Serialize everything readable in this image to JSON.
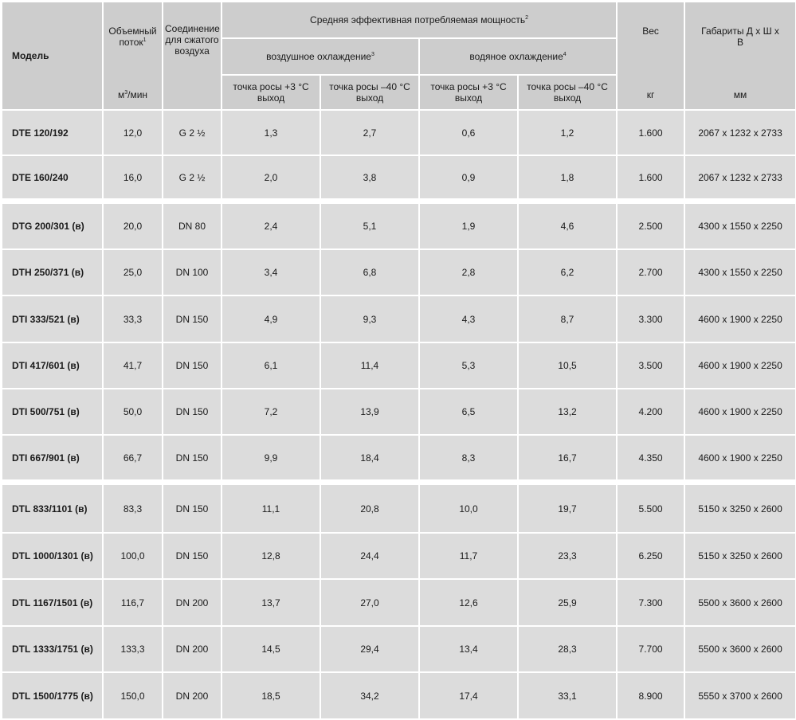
{
  "header": {
    "model": "Модель",
    "flow_label": "Объемный поток",
    "flow_sup": "1",
    "flow_unit_base": "м",
    "flow_unit_sup": "3",
    "flow_unit_rest": "/мин",
    "conn_label": "Соединение для сжатого воздуха",
    "power_label": "Средняя эффективная потребляемая мощность",
    "power_sup": "2",
    "air_cooling": "воздушное охлаждение",
    "air_sup": "3",
    "water_cooling": "водяное охлаждение",
    "water_sup": "4",
    "dew_plus3_line1": "точка росы +3 °C",
    "dew_plus3_line2": "выход",
    "dew_minus40_line1": "точка росы –40 °C",
    "dew_minus40_line2": "выход",
    "weight_label": "Вес",
    "weight_unit": "кг",
    "dims_label": "Габариты Д х Ш х В",
    "dims_unit": "мм"
  },
  "rows": [
    {
      "model": "DTE 120/192",
      "flow": "12,0",
      "conn": "G 2 ½",
      "air3": "1,3",
      "air40": "2,7",
      "water3": "0,6",
      "water40": "1,2",
      "weight": "1.600",
      "dims": "2067 x 1232 x 2733"
    },
    {
      "model": "DTE 160/240",
      "flow": "16,0",
      "conn": "G 2 ½",
      "air3": "2,0",
      "air40": "3,8",
      "water3": "0,9",
      "water40": "1,8",
      "weight": "1.600",
      "dims": "2067 x 1232 x 2733"
    },
    {
      "model": "DTG 200/301 (в)",
      "flow": "20,0",
      "conn": "DN 80",
      "air3": "2,4",
      "air40": "5,1",
      "water3": "1,9",
      "water40": "4,6",
      "weight": "2.500",
      "dims": "4300 x 1550 x 2250"
    },
    {
      "model": "DTH 250/371 (в)",
      "flow": "25,0",
      "conn": "DN 100",
      "air3": "3,4",
      "air40": "6,8",
      "water3": "2,8",
      "water40": "6,2",
      "weight": "2.700",
      "dims": "4300 x 1550 x 2250"
    },
    {
      "model": "DTI 333/521 (в)",
      "flow": "33,3",
      "conn": "DN 150",
      "air3": "4,9",
      "air40": "9,3",
      "water3": "4,3",
      "water40": "8,7",
      "weight": "3.300",
      "dims": "4600 x 1900 x 2250"
    },
    {
      "model": "DTI 417/601 (в)",
      "flow": "41,7",
      "conn": "DN 150",
      "air3": "6,1",
      "air40": "11,4",
      "water3": "5,3",
      "water40": "10,5",
      "weight": "3.500",
      "dims": "4600 x 1900 x 2250"
    },
    {
      "model": "DTI 500/751 (в)",
      "flow": "50,0",
      "conn": "DN 150",
      "air3": "7,2",
      "air40": "13,9",
      "water3": "6,5",
      "water40": "13,2",
      "weight": "4.200",
      "dims": "4600 x 1900 x 2250"
    },
    {
      "model": "DTI 667/901 (в)",
      "flow": "66,7",
      "conn": "DN 150",
      "air3": "9,9",
      "air40": "18,4",
      "water3": "8,3",
      "water40": "16,7",
      "weight": "4.350",
      "dims": "4600 x 1900 x 2250"
    },
    {
      "model": "DTL 833/1101 (в)",
      "flow": "83,3",
      "conn": "DN 150",
      "air3": "11,1",
      "air40": "20,8",
      "water3": "10,0",
      "water40": "19,7",
      "weight": "5.500",
      "dims": "5150 x 3250 x 2600"
    },
    {
      "model": "DTL 1000/1301 (в)",
      "flow": "100,0",
      "conn": "DN 150",
      "air3": "12,8",
      "air40": "24,4",
      "water3": "11,7",
      "water40": "23,3",
      "weight": "6.250",
      "dims": "5150 x 3250 x 2600"
    },
    {
      "model": "DTL 1167/1501 (в)",
      "flow": "116,7",
      "conn": "DN 200",
      "air3": "13,7",
      "air40": "27,0",
      "water3": "12,6",
      "water40": "25,9",
      "weight": "7.300",
      "dims": "5500 x 3600 x 2600"
    },
    {
      "model": "DTL 1333/1751 (в)",
      "flow": "133,3",
      "conn": "DN 200",
      "air3": "14,5",
      "air40": "29,4",
      "water3": "13,4",
      "water40": "28,3",
      "weight": "7.700",
      "dims": "5500 x 3600 x 2600"
    },
    {
      "model": "DTL 1500/1775 (в)",
      "flow": "150,0",
      "conn": "DN 200",
      "air3": "18,5",
      "air40": "34,2",
      "water3": "17,4",
      "water40": "33,1",
      "weight": "8.900",
      "dims": "5550 x 3700 x 2600"
    }
  ]
}
